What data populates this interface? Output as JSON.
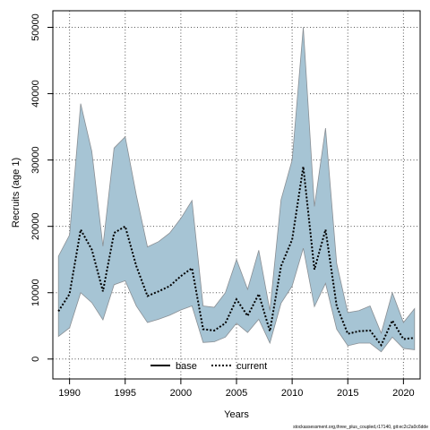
{
  "chart_data": {
    "type": "area",
    "xlabel": "Years",
    "ylabel": "Recruits (age 1)",
    "xlim": [
      1988.5,
      2021.5
    ],
    "ylim": [
      -3000,
      52500
    ],
    "x_ticks": [
      1990,
      1995,
      2000,
      2005,
      2010,
      2015,
      2020
    ],
    "y_ticks": [
      0,
      10000,
      20000,
      30000,
      40000,
      50000
    ],
    "grid": true,
    "legend_position": "bottom-center",
    "footnote": "stockassessment.org,three_plus_coupled,r17140, git:ec2c2a0c6dde",
    "x": [
      1989,
      1990,
      1991,
      1992,
      1993,
      1994,
      1995,
      1996,
      1997,
      1998,
      1999,
      2000,
      2001,
      2002,
      2003,
      2004,
      2005,
      2006,
      2007,
      2008,
      2009,
      2010,
      2011,
      2012,
      2013,
      2014,
      2015,
      2016,
      2017,
      2018,
      2019,
      2020,
      2021
    ],
    "series": [
      {
        "name": "current",
        "style": "dotted",
        "color": "#000000",
        "values": [
          7200,
          9800,
          19500,
          16500,
          10200,
          19000,
          20000,
          14000,
          9500,
          10200,
          11000,
          12500,
          13700,
          4500,
          4300,
          5400,
          9000,
          6500,
          9800,
          4200,
          14000,
          18000,
          29000,
          13500,
          19500,
          8000,
          3800,
          4200,
          4300,
          2100,
          5800,
          3000,
          3200
        ],
        "lower": [
          3400,
          4700,
          10000,
          8500,
          5900,
          11200,
          11800,
          8000,
          5500,
          6000,
          6600,
          7400,
          8000,
          2500,
          2600,
          3300,
          5400,
          4000,
          6000,
          2400,
          8400,
          11000,
          16700,
          7900,
          11400,
          4500,
          2000,
          2400,
          2400,
          1100,
          3300,
          1600,
          1400
        ],
        "upper": [
          15500,
          18700,
          38500,
          31300,
          17000,
          31800,
          33500,
          24700,
          16900,
          17700,
          19000,
          21200,
          23900,
          8000,
          7800,
          10000,
          15000,
          10500,
          16400,
          7300,
          24000,
          30000,
          50000,
          23000,
          34800,
          14400,
          7000,
          7300,
          8000,
          3900,
          10000,
          5500,
          7600
        ]
      }
    ],
    "legend": [
      "base",
      "current"
    ],
    "band_color": "#a6c4d4"
  }
}
